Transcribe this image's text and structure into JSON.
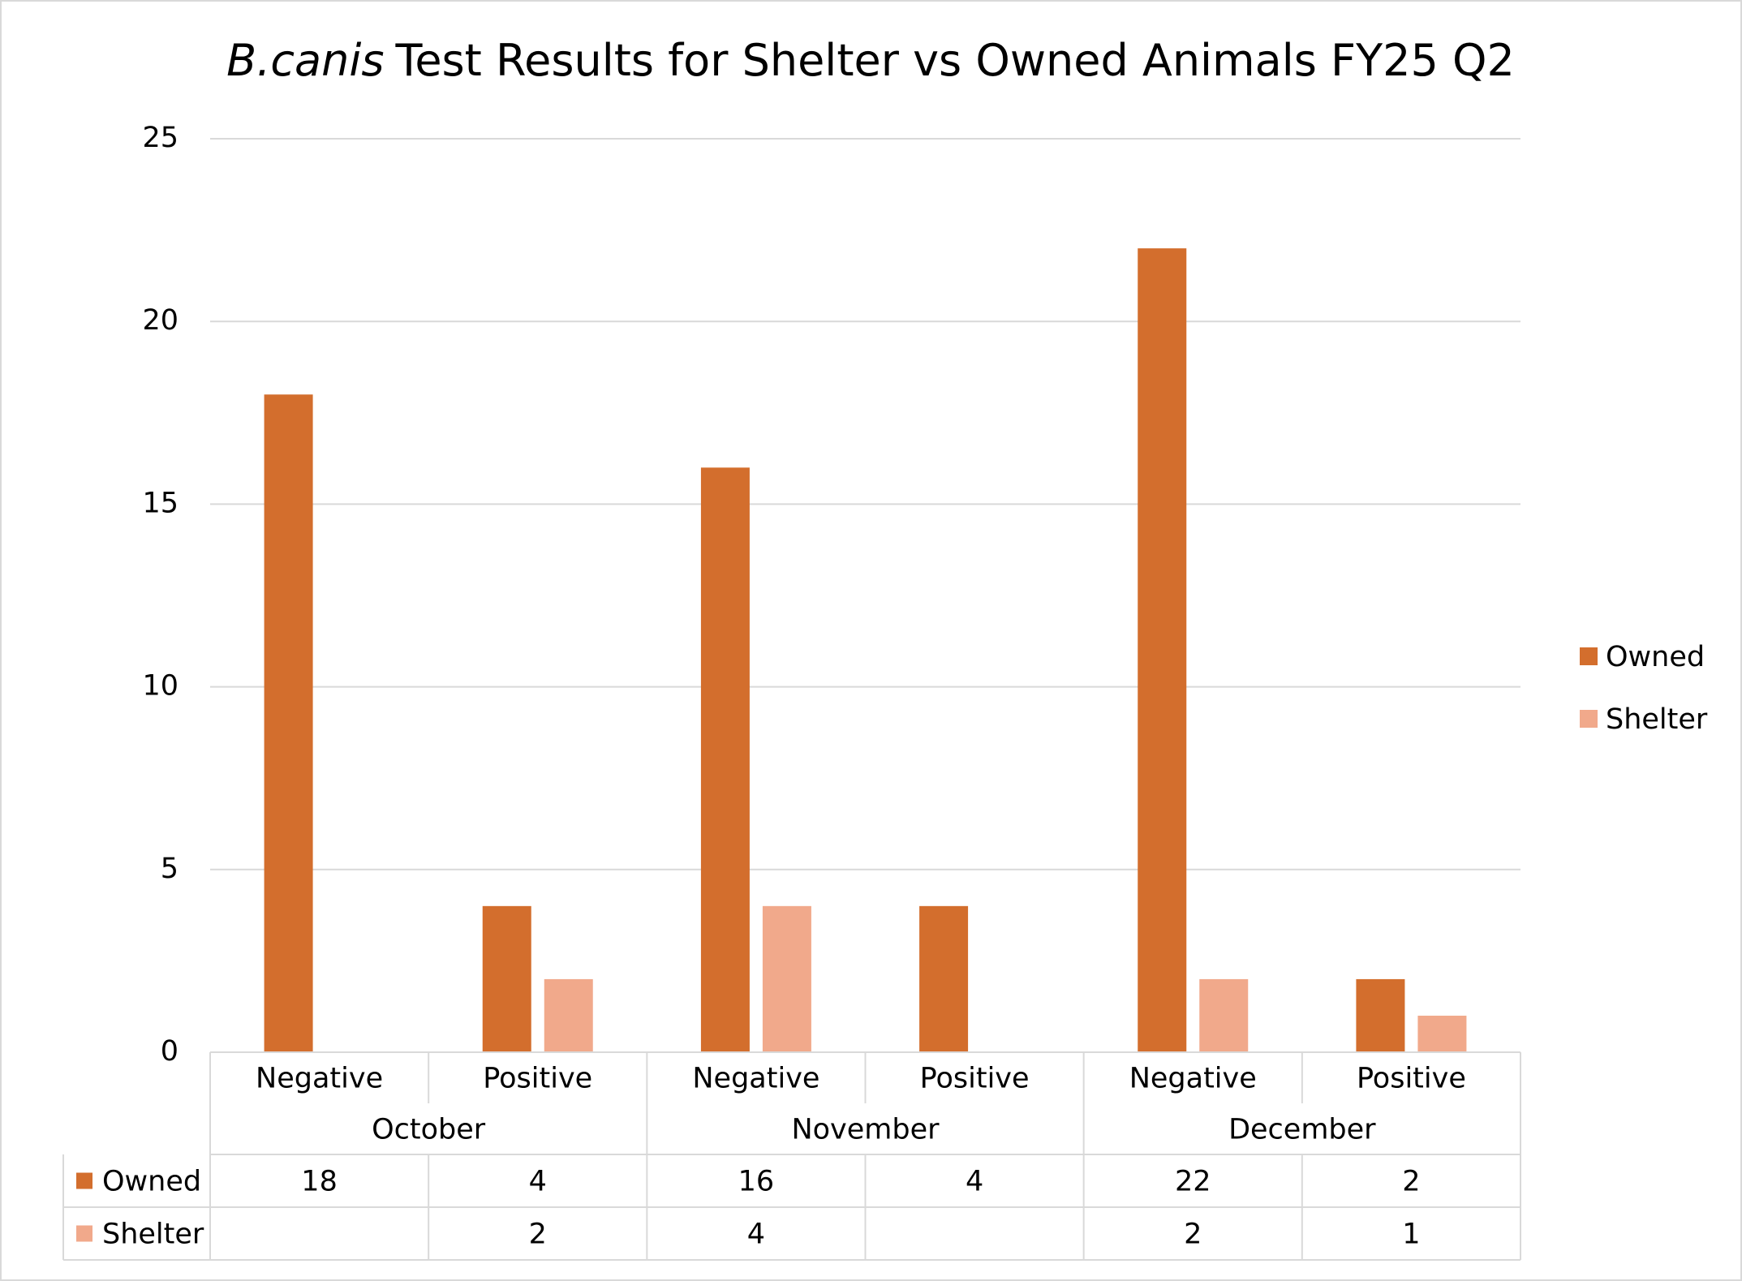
{
  "chart_data": {
    "type": "bar",
    "title_species": "B.canis",
    "title": "Test Results for Shelter vs Owned Animals FY25 Q2",
    "categories": [
      "Negative",
      "Positive",
      "Negative",
      "Positive",
      "Negative",
      "Positive"
    ],
    "category_groups": [
      "October",
      "November",
      "December"
    ],
    "series": [
      {
        "name": "Owned",
        "color": "#D36E2D",
        "values": [
          18,
          4,
          16,
          4,
          22,
          2
        ]
      },
      {
        "name": "Shelter",
        "color": "#F1A98B",
        "values": [
          null,
          2,
          4,
          null,
          2,
          1
        ]
      }
    ],
    "ylim": [
      0,
      25
    ],
    "yticks": [
      0,
      5,
      10,
      15,
      20,
      25
    ],
    "grid": true,
    "legend": "right",
    "data_table": true
  }
}
